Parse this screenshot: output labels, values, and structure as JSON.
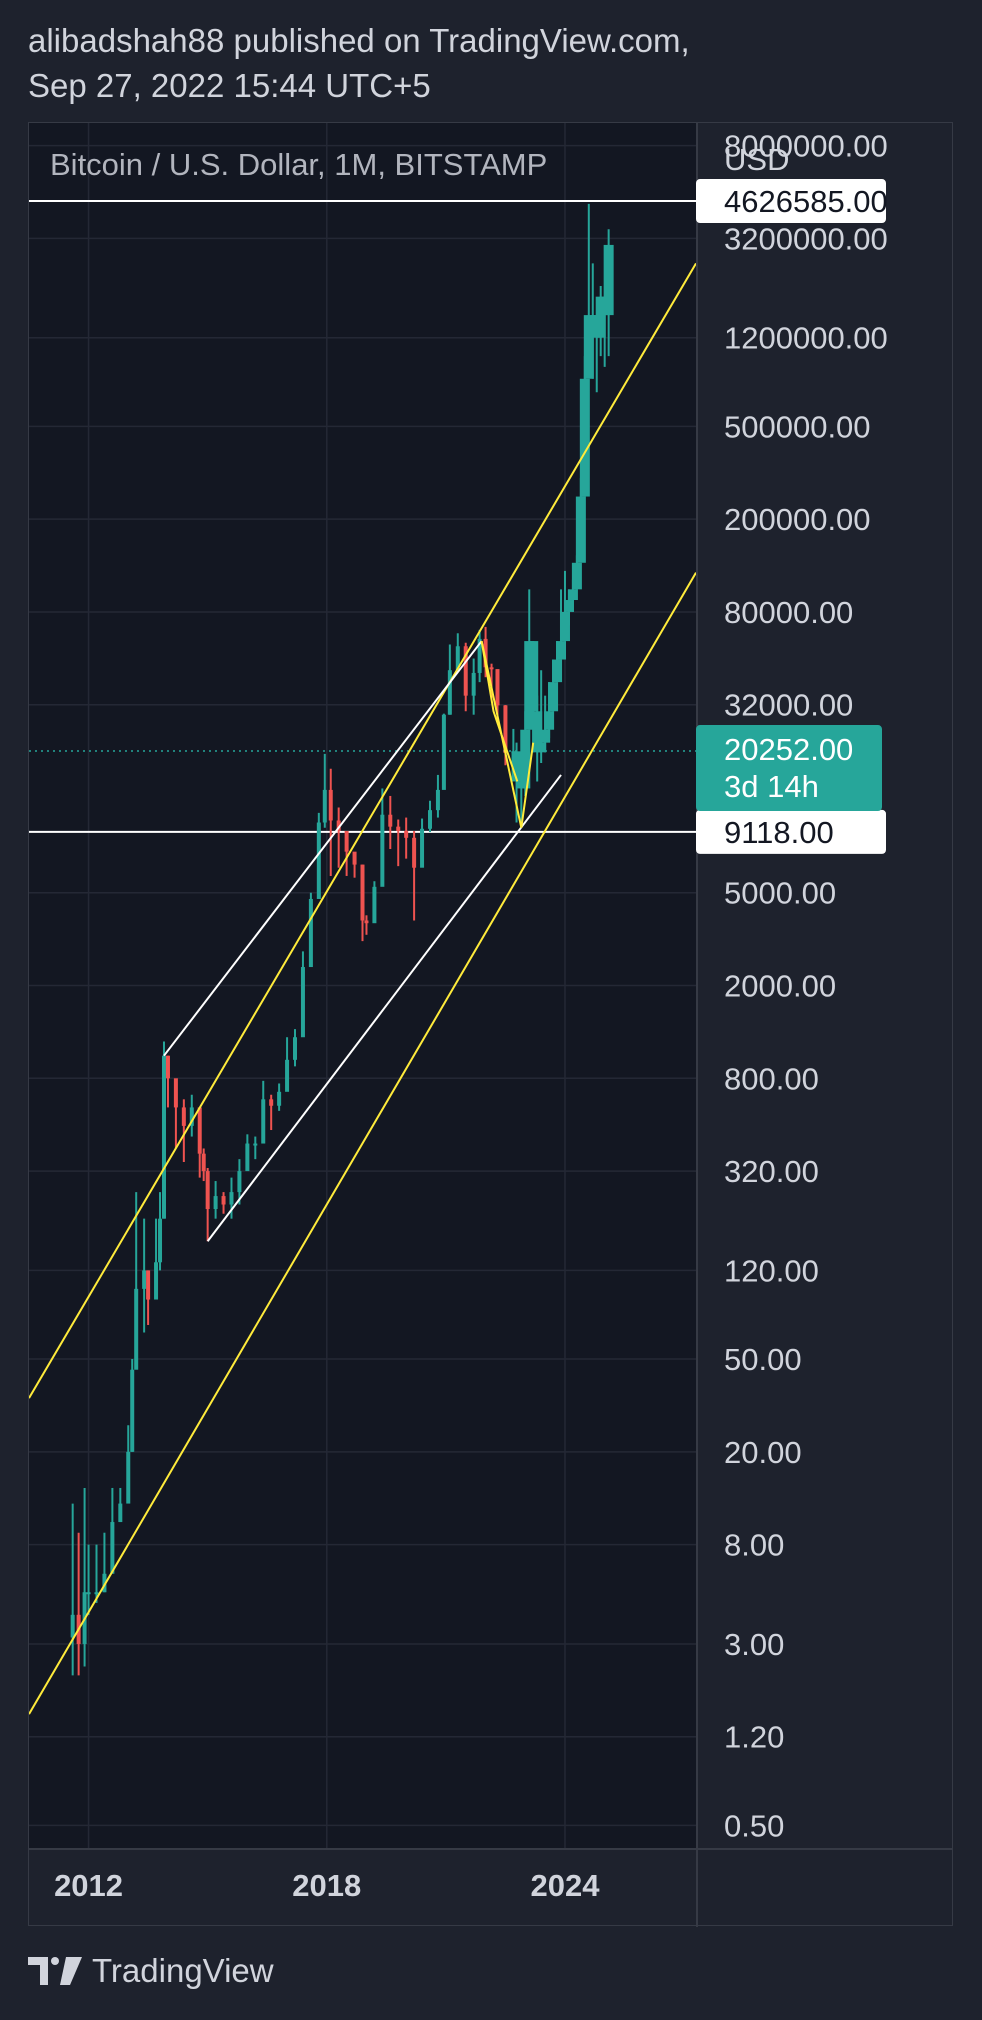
{
  "header": {
    "line1": "alibadshah88 published on TradingView.com,",
    "line2": "Sep 27, 2022 15:44 UTC+5"
  },
  "footer": {
    "brand": "TradingView",
    "logo_icon": "tradingview-logo-icon"
  },
  "colors": {
    "background": "#1e222d",
    "plot_background": "#131722",
    "up": "#26a69a",
    "down": "#ef5350",
    "channel_yellow": "#ffeb3b",
    "channel_white": "#ffffff",
    "price_badge": "#26a69a"
  },
  "chart_data": {
    "type": "candlestick",
    "title": "Bitcoin / U.S. Dollar, 1M, BITSTAMP",
    "currency_label": "USD",
    "scale": "log",
    "grid": true,
    "ylim": [
      0.4,
      10000000
    ],
    "xlim": [
      2010.5,
      2027.3
    ],
    "y_ticks": [
      "8000000.00",
      "3200000.00",
      "1200000.00",
      "500000.00",
      "200000.00",
      "80000.00",
      "32000.00",
      "5000.00",
      "2000.00",
      "800.00",
      "320.00",
      "120.00",
      "50.00",
      "20.00",
      "8.00",
      "3.00",
      "1.20",
      "0.50"
    ],
    "y_tick_values": [
      8000000,
      3200000,
      1200000,
      500000,
      200000,
      80000,
      32000,
      5000,
      2000,
      800,
      320,
      120,
      50,
      20,
      8,
      3,
      1.2,
      0.5
    ],
    "x_ticks": [
      "2012",
      "2018",
      "2024"
    ],
    "x_tick_values": [
      2012,
      2018,
      2024
    ],
    "horizontal_levels": [
      {
        "label": "4626585.00",
        "value": 4626585
      },
      {
        "label": "9118.00",
        "value": 9118
      }
    ],
    "current_price": {
      "label": "20252.00",
      "countdown": "3d 14h",
      "value": 20252
    },
    "series": [
      {
        "kind": "historical_candles",
        "points": [
          [
            2011.6,
            4,
            12,
            2.2
          ],
          [
            2011.75,
            3,
            9,
            2.2
          ],
          [
            2011.9,
            5,
            14,
            2.4
          ],
          [
            2012.0,
            5,
            8,
            4
          ],
          [
            2012.2,
            5,
            8,
            4.5
          ],
          [
            2012.4,
            6,
            9,
            5
          ],
          [
            2012.6,
            10,
            14,
            8
          ],
          [
            2012.8,
            12,
            14,
            10
          ],
          [
            2013.0,
            20,
            26,
            13
          ],
          [
            2013.1,
            45,
            50,
            20
          ],
          [
            2013.2,
            100,
            260,
            50
          ],
          [
            2013.4,
            120,
            200,
            65
          ],
          [
            2013.5,
            90,
            120,
            70
          ],
          [
            2013.7,
            130,
            200,
            100
          ],
          [
            2013.8,
            200,
            260,
            120
          ],
          [
            2013.9,
            1000,
            1150,
            200
          ],
          [
            2014.0,
            800,
            1000,
            600
          ],
          [
            2014.2,
            600,
            700,
            400
          ],
          [
            2014.4,
            500,
            650,
            350
          ],
          [
            2014.6,
            600,
            680,
            450
          ],
          [
            2014.8,
            380,
            500,
            300
          ],
          [
            2014.9,
            320,
            400,
            290
          ],
          [
            2015.0,
            220,
            330,
            160
          ],
          [
            2015.2,
            250,
            290,
            200
          ],
          [
            2015.4,
            230,
            260,
            210
          ],
          [
            2015.6,
            260,
            300,
            200
          ],
          [
            2015.8,
            320,
            360,
            230
          ],
          [
            2016.0,
            420,
            460,
            350
          ],
          [
            2016.2,
            420,
            450,
            360
          ],
          [
            2016.4,
            650,
            780,
            450
          ],
          [
            2016.6,
            610,
            680,
            480
          ],
          [
            2016.8,
            700,
            760,
            580
          ],
          [
            2017.0,
            960,
            1200,
            750
          ],
          [
            2017.2,
            1200,
            1300,
            900
          ],
          [
            2017.4,
            2400,
            2800,
            1400
          ],
          [
            2017.6,
            4700,
            5000,
            2500
          ],
          [
            2017.8,
            10000,
            11000,
            5500
          ],
          [
            2017.95,
            13800,
            19700,
            9500
          ],
          [
            2018.1,
            10200,
            17000,
            5900
          ],
          [
            2018.3,
            9200,
            11600,
            6400
          ],
          [
            2018.5,
            7500,
            8600,
            5900
          ],
          [
            2018.7,
            6600,
            7400,
            5800
          ],
          [
            2018.9,
            3800,
            6600,
            3100
          ],
          [
            2019.0,
            3700,
            4000,
            3300
          ],
          [
            2019.2,
            5300,
            5600,
            3900
          ],
          [
            2019.4,
            10800,
            14000,
            7500
          ],
          [
            2019.6,
            9600,
            13000,
            7700
          ],
          [
            2019.8,
            9200,
            10300,
            6500
          ],
          [
            2020.0,
            8600,
            10500,
            7000
          ],
          [
            2020.2,
            6400,
            9200,
            3800
          ],
          [
            2020.4,
            9400,
            10400,
            8400
          ],
          [
            2020.6,
            11300,
            12400,
            9100
          ],
          [
            2020.8,
            13800,
            16000,
            10500
          ],
          [
            2020.95,
            29000,
            29300,
            18000
          ],
          [
            2021.1,
            45000,
            58000,
            29000
          ],
          [
            2021.3,
            57000,
            64800,
            47000
          ],
          [
            2021.5,
            35000,
            59000,
            30000
          ],
          [
            2021.7,
            43800,
            50500,
            29000
          ],
          [
            2021.85,
            61300,
            67000,
            40000
          ],
          [
            2022.0,
            46300,
            69000,
            42000
          ],
          [
            2022.15,
            45500,
            48000,
            34300
          ],
          [
            2022.3,
            31800,
            38800,
            26700
          ],
          [
            2022.5,
            19900,
            31900,
            17600
          ],
          [
            2022.7,
            20200,
            25200,
            18200
          ]
        ]
      },
      {
        "kind": "projected_candles",
        "points": [
          [
            2022.78,
            15000,
            22000,
            10000
          ],
          [
            2022.9,
            14000,
            18000,
            9500
          ],
          [
            2023.0,
            25000,
            30000,
            13000
          ],
          [
            2023.1,
            60000,
            100000,
            25000
          ],
          [
            2023.2,
            30000,
            40000,
            20000
          ],
          [
            2023.3,
            20000,
            35000,
            15000
          ],
          [
            2023.4,
            22000,
            45000,
            18000
          ],
          [
            2023.5,
            25000,
            35000,
            20000
          ],
          [
            2023.6,
            30000,
            40000,
            23000
          ],
          [
            2023.7,
            40000,
            50000,
            30000
          ],
          [
            2023.8,
            50000,
            60000,
            40000
          ],
          [
            2023.9,
            60000,
            100000,
            50000
          ],
          [
            2024.0,
            80000,
            120000,
            60000
          ],
          [
            2024.1,
            90000,
            100000,
            70000
          ],
          [
            2024.2,
            100000,
            110000,
            80000
          ],
          [
            2024.3,
            130000,
            140000,
            100000
          ],
          [
            2024.4,
            250000,
            300000,
            150000
          ],
          [
            2024.5,
            800000,
            1000000,
            400000
          ],
          [
            2024.6,
            1500000,
            4500000,
            900000
          ],
          [
            2024.7,
            1500000,
            2500000,
            800000
          ],
          [
            2024.8,
            1200000,
            1500000,
            700000
          ],
          [
            2024.9,
            1800000,
            2000000,
            1000000
          ],
          [
            2025.0,
            1500000,
            1800000,
            900000
          ],
          [
            2025.1,
            3000000,
            3500000,
            1000000
          ]
        ]
      }
    ],
    "trend_lines": [
      {
        "color": "yellow",
        "points": [
          [
            2010.5,
            34
          ],
          [
            2027.3,
            2500000
          ]
        ]
      },
      {
        "color": "yellow",
        "points": [
          [
            2010.5,
            1.5
          ],
          [
            2027.3,
            118000
          ]
        ]
      },
      {
        "color": "white",
        "points": [
          [
            2013.9,
            1000
          ],
          [
            2021.9,
            60000
          ]
        ]
      },
      {
        "color": "white",
        "points": [
          [
            2015.0,
            160
          ],
          [
            2023.9,
            16000
          ]
        ]
      },
      {
        "color": "yellow",
        "points": [
          [
            2021.9,
            60000
          ],
          [
            2022.9,
            9500
          ],
          [
            2023.2,
            22000
          ]
        ]
      },
      {
        "color": "yellow",
        "points": [
          [
            2021.9,
            60000
          ],
          [
            2022.2,
            30000
          ],
          [
            2022.8,
            15000
          ]
        ]
      }
    ]
  }
}
